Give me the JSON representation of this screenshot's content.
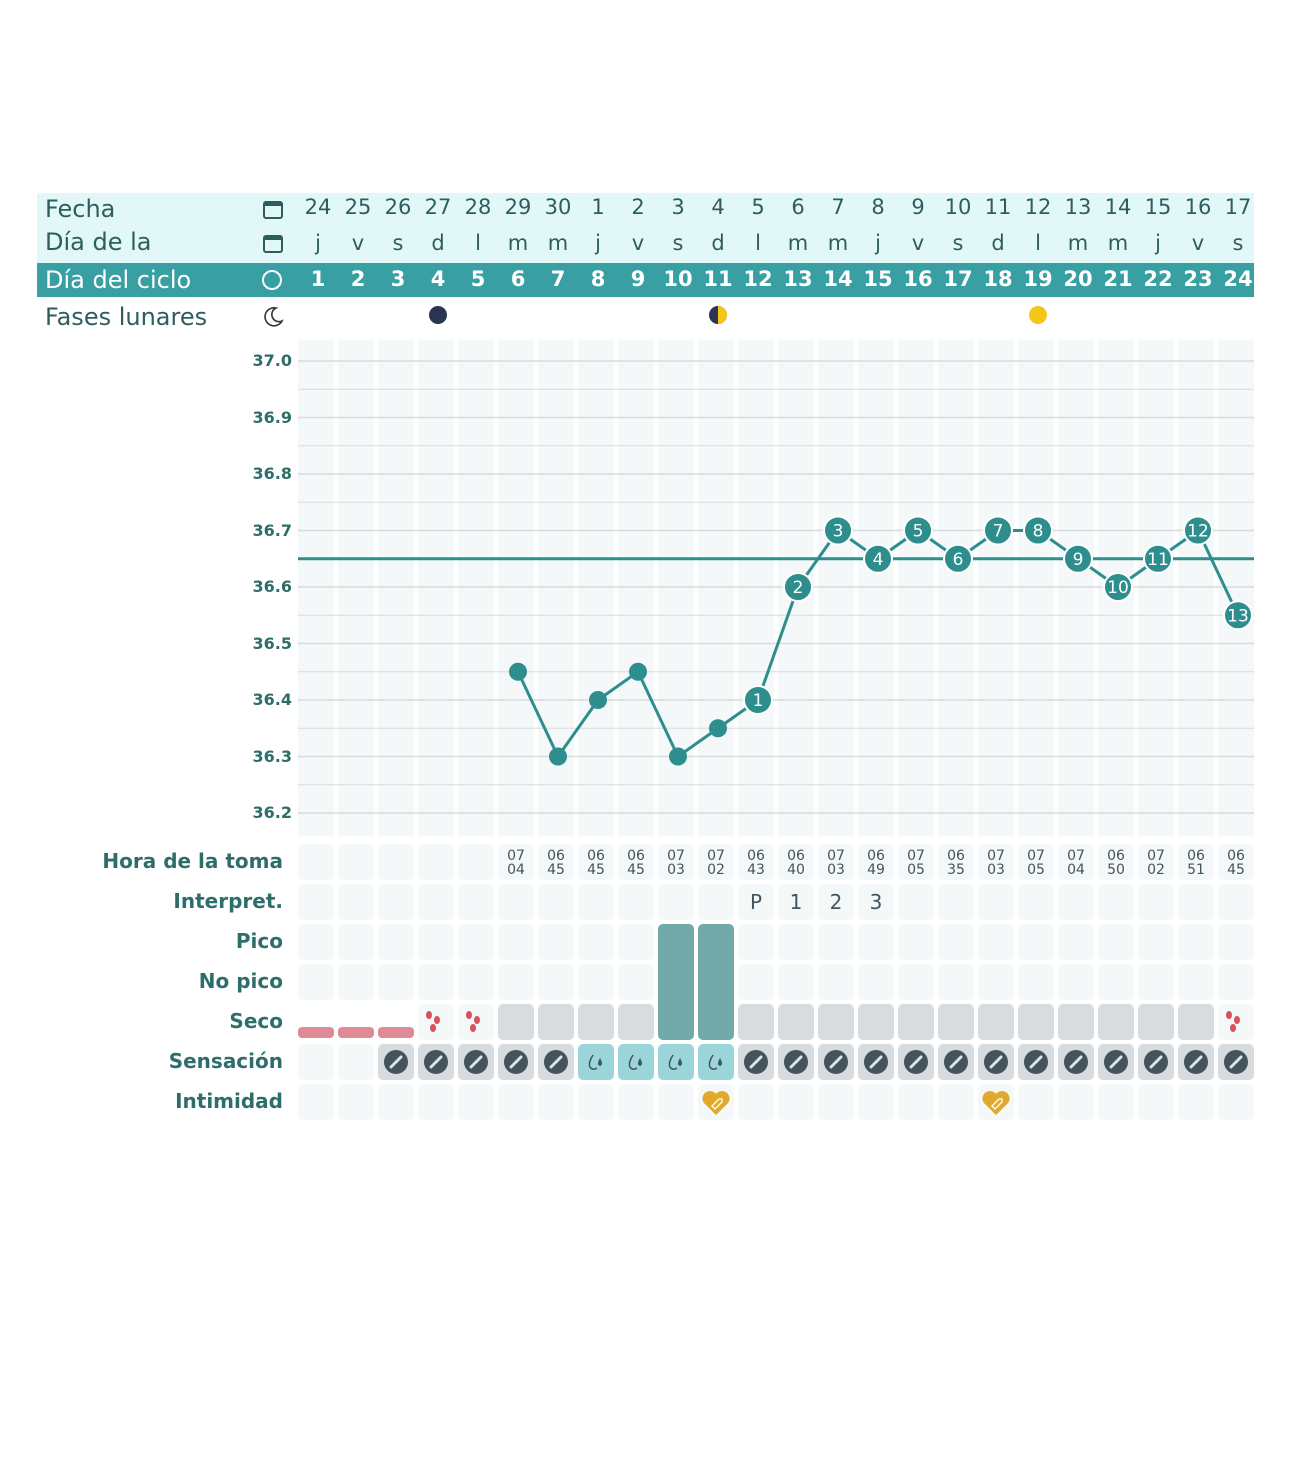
{
  "labels": {
    "fecha": "Fecha",
    "dia_semana": "Día de la",
    "dia_ciclo": "Día del ciclo",
    "fases": "Fases lunares",
    "hora": "Hora de la toma",
    "interpret": "Interpret.",
    "pico": "Pico",
    "no_pico": "No pico",
    "seco": "Seco",
    "sensacion": "Sensación",
    "intimidad": "Intimidad"
  },
  "icons": {
    "fecha": "calendar-icon",
    "dia_semana": "calendar-icon",
    "dia_ciclo": "circle-icon",
    "fases": "moon-icon"
  },
  "colors": {
    "teal": "#389fa3",
    "light": "#e2f8f8",
    "line": "#2e8e8e",
    "peak": "#72a8a8",
    "period": "#e08a95",
    "dry": "#44545e",
    "wet": "#9ad6d9",
    "heart": "#e0a92a"
  },
  "dates": [
    "24",
    "25",
    "26",
    "27",
    "28",
    "29",
    "30",
    "1",
    "2",
    "3",
    "4",
    "5",
    "6",
    "7",
    "8",
    "9",
    "10",
    "11",
    "12",
    "13",
    "14",
    "15",
    "16",
    "17"
  ],
  "weekdays": [
    "j",
    "v",
    "s",
    "d",
    "l",
    "m",
    "m",
    "j",
    "v",
    "s",
    "d",
    "l",
    "m",
    "m",
    "j",
    "v",
    "s",
    "d",
    "l",
    "m",
    "m",
    "j",
    "v",
    "s"
  ],
  "cycle_days": [
    "1",
    "2",
    "3",
    "4",
    "5",
    "6",
    "7",
    "8",
    "9",
    "10",
    "11",
    "12",
    "13",
    "14",
    "15",
    "16",
    "17",
    "18",
    "19",
    "20",
    "21",
    "22",
    "23",
    "24"
  ],
  "moon_phases": {
    "4": "new",
    "11": "first-quarter",
    "19": "full"
  },
  "chart_data": {
    "type": "line",
    "y_ticks": [
      "37.0",
      "36.9",
      "36.8",
      "36.7",
      "36.6",
      "36.5",
      "36.4",
      "36.3",
      "36.2"
    ],
    "ylim": [
      36.2,
      37.0
    ],
    "x": [
      6,
      7,
      8,
      9,
      10,
      11,
      12,
      13,
      14,
      15,
      16,
      17,
      18,
      19,
      20,
      21,
      22,
      23,
      24
    ],
    "temps": [
      36.45,
      36.3,
      36.4,
      36.45,
      36.3,
      36.35,
      36.4,
      36.6,
      36.7,
      36.65,
      36.7,
      36.65,
      36.7,
      36.7,
      36.65,
      36.6,
      36.65,
      36.7,
      36.55
    ],
    "point_labels": [
      "",
      "",
      "",
      "",
      "",
      "",
      "1",
      "2",
      "3",
      "4",
      "5",
      "6",
      "7",
      "8",
      "9",
      "10",
      "11",
      "12",
      "13"
    ],
    "coverline": 36.65
  },
  "times": [
    "",
    "",
    "",
    "",
    "",
    "07 04",
    "06 45",
    "06 45",
    "06 45",
    "07 03",
    "07 02",
    "06 43",
    "06 40",
    "07 03",
    "06 49",
    "07 05",
    "06 35",
    "07 03",
    "07 05",
    "07 04",
    "06 50",
    "07 02",
    "06 51",
    "06 45"
  ],
  "interpretation": [
    "",
    "",
    "",
    "",
    "",
    "",
    "",
    "",
    "",
    "",
    "",
    "P",
    "1",
    "2",
    "3",
    "",
    "",
    "",
    "",
    "",
    "",
    "",
    "",
    ""
  ],
  "peak_days": [
    10,
    11
  ],
  "seco": [
    "period",
    "period",
    "period",
    "spotting",
    "spotting",
    "dry",
    "dry",
    "dry",
    "dry",
    "peak",
    "peak",
    "dry",
    "dry",
    "dry",
    "dry",
    "dry",
    "dry",
    "dry",
    "dry",
    "dry",
    "dry",
    "dry",
    "dry",
    "spotting"
  ],
  "sensacion": [
    "",
    "",
    "dry",
    "dry",
    "dry",
    "dry",
    "dry",
    "wet",
    "wet",
    "wet",
    "wet",
    "dry",
    "dry",
    "dry",
    "dry",
    "dry",
    "dry",
    "dry",
    "dry",
    "dry",
    "dry",
    "dry",
    "dry",
    "dry"
  ],
  "intimidad": [
    11,
    18
  ]
}
